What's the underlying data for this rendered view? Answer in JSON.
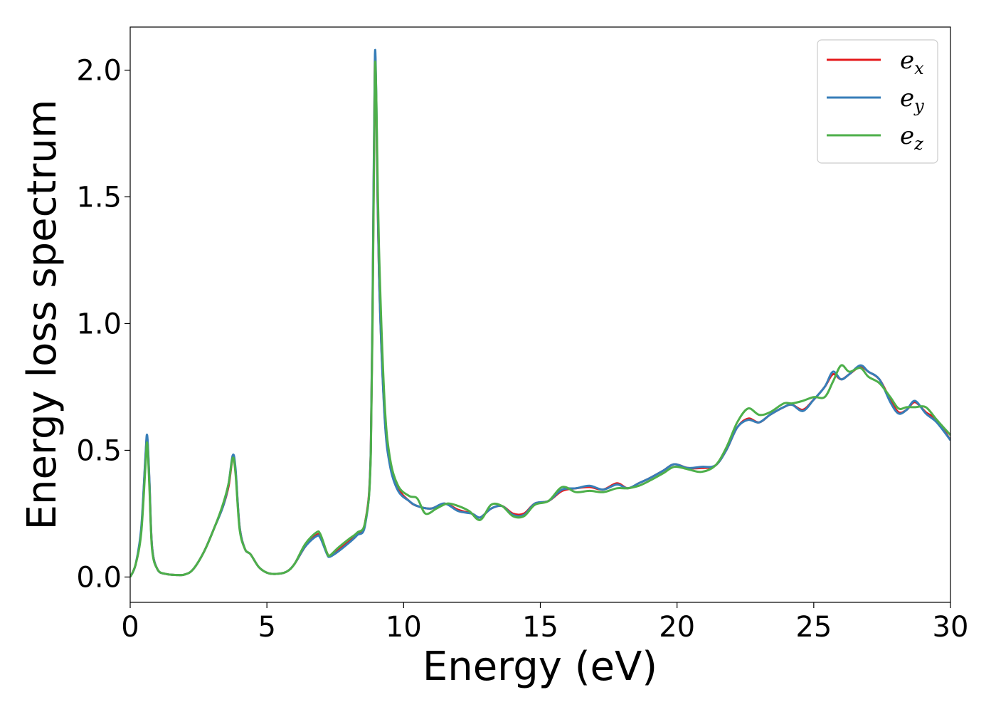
{
  "chart_data": {
    "type": "line",
    "title": "",
    "xlabel": "Energy (eV)",
    "ylabel": "Energy loss spectrum",
    "xlim": [
      0,
      30
    ],
    "ylim": [
      -0.1,
      2.17
    ],
    "xticks": [
      0,
      5,
      10,
      15,
      20,
      25,
      30
    ],
    "yticks": [
      0.0,
      0.5,
      1.0,
      1.5,
      2.0
    ],
    "xtick_labels": [
      "0",
      "5",
      "10",
      "15",
      "20",
      "25",
      "30"
    ],
    "ytick_labels": [
      "0.0",
      "0.5",
      "1.0",
      "1.5",
      "2.0"
    ],
    "grid": false,
    "legend_position": "top-right",
    "series": [
      {
        "name": "e",
        "subscript": "x",
        "color": "#e41a1c",
        "points": [
          [
            0,
            0.0
          ],
          [
            0.2,
            0.05
          ],
          [
            0.4,
            0.18
          ],
          [
            0.55,
            0.45
          ],
          [
            0.62,
            0.55
          ],
          [
            0.7,
            0.38
          ],
          [
            0.8,
            0.12
          ],
          [
            1.0,
            0.03
          ],
          [
            1.3,
            0.012
          ],
          [
            1.7,
            0.008
          ],
          [
            2.0,
            0.01
          ],
          [
            2.3,
            0.03
          ],
          [
            2.7,
            0.1
          ],
          [
            3.1,
            0.2
          ],
          [
            3.4,
            0.28
          ],
          [
            3.6,
            0.36
          ],
          [
            3.75,
            0.47
          ],
          [
            3.85,
            0.42
          ],
          [
            4.0,
            0.2
          ],
          [
            4.2,
            0.11
          ],
          [
            4.4,
            0.09
          ],
          [
            4.7,
            0.04
          ],
          [
            5.0,
            0.017
          ],
          [
            5.3,
            0.012
          ],
          [
            5.7,
            0.02
          ],
          [
            6.0,
            0.05
          ],
          [
            6.4,
            0.12
          ],
          [
            6.8,
            0.165
          ],
          [
            6.95,
            0.16
          ],
          [
            7.2,
            0.095
          ],
          [
            7.3,
            0.08
          ],
          [
            7.6,
            0.105
          ],
          [
            8.0,
            0.14
          ],
          [
            8.3,
            0.17
          ],
          [
            8.6,
            0.22
          ],
          [
            8.8,
            0.5
          ],
          [
            8.9,
            1.5
          ],
          [
            8.95,
            2.05
          ],
          [
            9.0,
            1.85
          ],
          [
            9.1,
            1.2
          ],
          [
            9.3,
            0.65
          ],
          [
            9.5,
            0.45
          ],
          [
            9.8,
            0.35
          ],
          [
            10.2,
            0.3
          ],
          [
            10.5,
            0.28
          ],
          [
            11.0,
            0.27
          ],
          [
            11.5,
            0.29
          ],
          [
            12.0,
            0.265
          ],
          [
            12.5,
            0.25
          ],
          [
            12.8,
            0.235
          ],
          [
            13.2,
            0.27
          ],
          [
            13.6,
            0.28
          ],
          [
            14.0,
            0.25
          ],
          [
            14.4,
            0.25
          ],
          [
            14.8,
            0.29
          ],
          [
            15.3,
            0.3
          ],
          [
            15.8,
            0.34
          ],
          [
            16.3,
            0.35
          ],
          [
            16.8,
            0.355
          ],
          [
            17.3,
            0.345
          ],
          [
            17.8,
            0.37
          ],
          [
            18.2,
            0.35
          ],
          [
            18.6,
            0.37
          ],
          [
            19.0,
            0.39
          ],
          [
            19.5,
            0.42
          ],
          [
            19.9,
            0.445
          ],
          [
            20.4,
            0.43
          ],
          [
            20.9,
            0.43
          ],
          [
            21.4,
            0.44
          ],
          [
            21.8,
            0.5
          ],
          [
            22.2,
            0.59
          ],
          [
            22.6,
            0.625
          ],
          [
            23.0,
            0.61
          ],
          [
            23.4,
            0.64
          ],
          [
            23.9,
            0.67
          ],
          [
            24.2,
            0.68
          ],
          [
            24.6,
            0.66
          ],
          [
            25.0,
            0.7
          ],
          [
            25.4,
            0.75
          ],
          [
            25.7,
            0.8
          ],
          [
            26.0,
            0.78
          ],
          [
            26.3,
            0.8
          ],
          [
            26.7,
            0.83
          ],
          [
            27.0,
            0.81
          ],
          [
            27.4,
            0.78
          ],
          [
            27.8,
            0.7
          ],
          [
            28.1,
            0.65
          ],
          [
            28.4,
            0.66
          ],
          [
            28.7,
            0.69
          ],
          [
            29.1,
            0.65
          ],
          [
            29.5,
            0.62
          ],
          [
            30.0,
            0.54
          ]
        ]
      },
      {
        "name": "e",
        "subscript": "y",
        "color": "#377eb8",
        "points": [
          [
            0,
            0.0
          ],
          [
            0.2,
            0.05
          ],
          [
            0.4,
            0.19
          ],
          [
            0.55,
            0.46
          ],
          [
            0.62,
            0.56
          ],
          [
            0.7,
            0.39
          ],
          [
            0.8,
            0.12
          ],
          [
            1.0,
            0.03
          ],
          [
            1.3,
            0.012
          ],
          [
            1.7,
            0.008
          ],
          [
            2.0,
            0.01
          ],
          [
            2.3,
            0.03
          ],
          [
            2.7,
            0.1
          ],
          [
            3.1,
            0.2
          ],
          [
            3.4,
            0.28
          ],
          [
            3.6,
            0.37
          ],
          [
            3.75,
            0.48
          ],
          [
            3.85,
            0.43
          ],
          [
            4.0,
            0.2
          ],
          [
            4.2,
            0.11
          ],
          [
            4.4,
            0.09
          ],
          [
            4.7,
            0.04
          ],
          [
            5.0,
            0.017
          ],
          [
            5.3,
            0.012
          ],
          [
            5.7,
            0.02
          ],
          [
            6.0,
            0.05
          ],
          [
            6.4,
            0.12
          ],
          [
            6.8,
            0.16
          ],
          [
            6.95,
            0.155
          ],
          [
            7.2,
            0.09
          ],
          [
            7.3,
            0.08
          ],
          [
            7.6,
            0.1
          ],
          [
            8.0,
            0.135
          ],
          [
            8.3,
            0.165
          ],
          [
            8.6,
            0.21
          ],
          [
            8.8,
            0.5
          ],
          [
            8.9,
            1.55
          ],
          [
            8.95,
            2.06
          ],
          [
            9.0,
            1.9
          ],
          [
            9.1,
            1.2
          ],
          [
            9.3,
            0.64
          ],
          [
            9.5,
            0.44
          ],
          [
            9.8,
            0.34
          ],
          [
            10.2,
            0.3
          ],
          [
            10.5,
            0.28
          ],
          [
            11.0,
            0.27
          ],
          [
            11.5,
            0.29
          ],
          [
            12.0,
            0.26
          ],
          [
            12.5,
            0.25
          ],
          [
            12.8,
            0.235
          ],
          [
            13.2,
            0.27
          ],
          [
            13.6,
            0.28
          ],
          [
            14.0,
            0.245
          ],
          [
            14.4,
            0.245
          ],
          [
            14.8,
            0.29
          ],
          [
            15.3,
            0.3
          ],
          [
            15.8,
            0.345
          ],
          [
            16.3,
            0.35
          ],
          [
            16.8,
            0.36
          ],
          [
            17.3,
            0.345
          ],
          [
            17.8,
            0.365
          ],
          [
            18.2,
            0.35
          ],
          [
            18.6,
            0.37
          ],
          [
            19.0,
            0.39
          ],
          [
            19.5,
            0.42
          ],
          [
            19.9,
            0.445
          ],
          [
            20.4,
            0.43
          ],
          [
            20.9,
            0.435
          ],
          [
            21.4,
            0.44
          ],
          [
            21.8,
            0.5
          ],
          [
            22.2,
            0.59
          ],
          [
            22.6,
            0.62
          ],
          [
            23.0,
            0.61
          ],
          [
            23.4,
            0.64
          ],
          [
            23.9,
            0.67
          ],
          [
            24.2,
            0.68
          ],
          [
            24.6,
            0.655
          ],
          [
            25.0,
            0.7
          ],
          [
            25.4,
            0.75
          ],
          [
            25.7,
            0.81
          ],
          [
            26.0,
            0.78
          ],
          [
            26.3,
            0.8
          ],
          [
            26.7,
            0.835
          ],
          [
            27.0,
            0.81
          ],
          [
            27.4,
            0.78
          ],
          [
            27.8,
            0.69
          ],
          [
            28.1,
            0.645
          ],
          [
            28.4,
            0.66
          ],
          [
            28.7,
            0.695
          ],
          [
            29.1,
            0.645
          ],
          [
            29.5,
            0.61
          ],
          [
            30.0,
            0.54
          ]
        ]
      },
      {
        "name": "e",
        "subscript": "z",
        "color": "#4daf4a",
        "points": [
          [
            0,
            0.0
          ],
          [
            0.2,
            0.05
          ],
          [
            0.4,
            0.17
          ],
          [
            0.55,
            0.42
          ],
          [
            0.62,
            0.53
          ],
          [
            0.7,
            0.36
          ],
          [
            0.8,
            0.11
          ],
          [
            1.0,
            0.03
          ],
          [
            1.3,
            0.012
          ],
          [
            1.7,
            0.008
          ],
          [
            2.0,
            0.01
          ],
          [
            2.3,
            0.03
          ],
          [
            2.7,
            0.1
          ],
          [
            3.1,
            0.2
          ],
          [
            3.4,
            0.29
          ],
          [
            3.6,
            0.37
          ],
          [
            3.75,
            0.47
          ],
          [
            3.85,
            0.41
          ],
          [
            4.0,
            0.19
          ],
          [
            4.2,
            0.11
          ],
          [
            4.4,
            0.09
          ],
          [
            4.7,
            0.04
          ],
          [
            5.0,
            0.017
          ],
          [
            5.3,
            0.012
          ],
          [
            5.7,
            0.02
          ],
          [
            6.0,
            0.05
          ],
          [
            6.4,
            0.13
          ],
          [
            6.8,
            0.175
          ],
          [
            6.95,
            0.17
          ],
          [
            7.2,
            0.095
          ],
          [
            7.3,
            0.085
          ],
          [
            7.6,
            0.115
          ],
          [
            8.0,
            0.15
          ],
          [
            8.3,
            0.175
          ],
          [
            8.6,
            0.22
          ],
          [
            8.8,
            0.48
          ],
          [
            8.9,
            1.45
          ],
          [
            8.95,
            2.0
          ],
          [
            9.0,
            1.9
          ],
          [
            9.1,
            1.3
          ],
          [
            9.3,
            0.7
          ],
          [
            9.5,
            0.47
          ],
          [
            9.8,
            0.36
          ],
          [
            10.2,
            0.32
          ],
          [
            10.5,
            0.31
          ],
          [
            10.8,
            0.25
          ],
          [
            11.2,
            0.27
          ],
          [
            11.6,
            0.29
          ],
          [
            12.0,
            0.28
          ],
          [
            12.4,
            0.26
          ],
          [
            12.8,
            0.225
          ],
          [
            13.2,
            0.285
          ],
          [
            13.6,
            0.28
          ],
          [
            14.0,
            0.24
          ],
          [
            14.4,
            0.24
          ],
          [
            14.8,
            0.285
          ],
          [
            15.3,
            0.3
          ],
          [
            15.8,
            0.355
          ],
          [
            16.3,
            0.335
          ],
          [
            16.8,
            0.34
          ],
          [
            17.3,
            0.335
          ],
          [
            17.8,
            0.35
          ],
          [
            18.2,
            0.35
          ],
          [
            18.6,
            0.36
          ],
          [
            19.0,
            0.38
          ],
          [
            19.5,
            0.41
          ],
          [
            19.9,
            0.435
          ],
          [
            20.4,
            0.425
          ],
          [
            20.9,
            0.415
          ],
          [
            21.4,
            0.44
          ],
          [
            21.8,
            0.51
          ],
          [
            22.2,
            0.61
          ],
          [
            22.6,
            0.665
          ],
          [
            23.0,
            0.64
          ],
          [
            23.4,
            0.65
          ],
          [
            23.9,
            0.685
          ],
          [
            24.2,
            0.685
          ],
          [
            24.6,
            0.695
          ],
          [
            25.0,
            0.71
          ],
          [
            25.4,
            0.71
          ],
          [
            25.7,
            0.77
          ],
          [
            26.0,
            0.835
          ],
          [
            26.3,
            0.81
          ],
          [
            26.7,
            0.825
          ],
          [
            27.0,
            0.79
          ],
          [
            27.4,
            0.765
          ],
          [
            27.8,
            0.71
          ],
          [
            28.1,
            0.665
          ],
          [
            28.4,
            0.67
          ],
          [
            28.7,
            0.67
          ],
          [
            29.1,
            0.67
          ],
          [
            29.5,
            0.62
          ],
          [
            30.0,
            0.56
          ]
        ]
      }
    ]
  }
}
